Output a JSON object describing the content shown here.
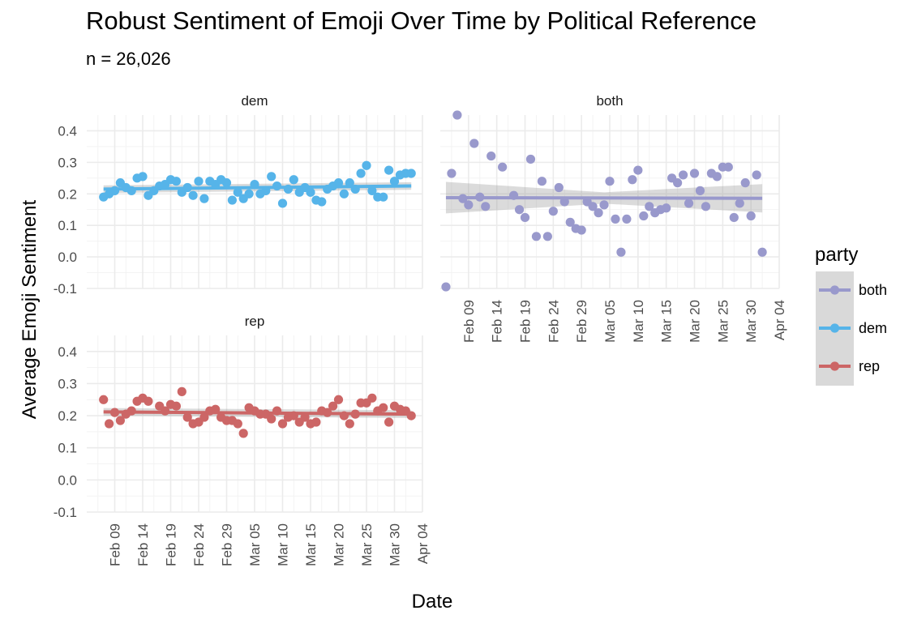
{
  "title": "Robust Sentiment of Emoji Over Time by Political Reference",
  "subtitle": "n = 26,026",
  "chart_data": {
    "type": "scatter",
    "xlabel": "Date",
    "ylabel": "Average Emoji Sentiment",
    "ylim": [
      -0.1,
      0.45
    ],
    "y_ticks": [
      "-0.1",
      "0.0",
      "0.1",
      "0.2",
      "0.3",
      "0.4"
    ],
    "y_tick_values": [
      -0.1,
      0.0,
      0.1,
      0.2,
      0.3,
      0.4
    ],
    "x_range": [
      "2020-02-04",
      "2020-04-04"
    ],
    "x_ticks": [
      "Feb 09",
      "Feb 14",
      "Feb 19",
      "Feb 24",
      "Feb 29",
      "Mar 05",
      "Mar 10",
      "Mar 15",
      "Mar 20",
      "Mar 25",
      "Mar 30",
      "Apr 04"
    ],
    "x_tick_dates": [
      "2020-02-09",
      "2020-02-14",
      "2020-02-19",
      "2020-02-24",
      "2020-02-29",
      "2020-03-05",
      "2020-03-10",
      "2020-03-15",
      "2020-03-20",
      "2020-03-25",
      "2020-03-30",
      "2020-04-04"
    ],
    "grid": true,
    "facet_by": "party",
    "legend": {
      "title": "party",
      "position": "right",
      "entries": [
        {
          "label": "both",
          "color": "#9999cc"
        },
        {
          "label": "dem",
          "color": "#56b4e9"
        },
        {
          "label": "rep",
          "color": "#cc6666"
        }
      ]
    },
    "panels": [
      {
        "strip": "dem",
        "color": "#56b4e9",
        "band": "narrow",
        "fit": [
          0.215,
          0.225
        ],
        "x": [
          "2020-02-07",
          "2020-02-08",
          "2020-02-09",
          "2020-02-10",
          "2020-02-11",
          "2020-02-12",
          "2020-02-13",
          "2020-02-14",
          "2020-02-15",
          "2020-02-16",
          "2020-02-17",
          "2020-02-18",
          "2020-02-19",
          "2020-02-20",
          "2020-02-21",
          "2020-02-22",
          "2020-02-23",
          "2020-02-24",
          "2020-02-25",
          "2020-02-26",
          "2020-02-27",
          "2020-02-28",
          "2020-02-29",
          "2020-03-01",
          "2020-03-02",
          "2020-03-03",
          "2020-03-04",
          "2020-03-05",
          "2020-03-06",
          "2020-03-07",
          "2020-03-08",
          "2020-03-09",
          "2020-03-10",
          "2020-03-11",
          "2020-03-12",
          "2020-03-13",
          "2020-03-14",
          "2020-03-15",
          "2020-03-16",
          "2020-03-17",
          "2020-03-18",
          "2020-03-19",
          "2020-03-20",
          "2020-03-21",
          "2020-03-22",
          "2020-03-23",
          "2020-03-24",
          "2020-03-25",
          "2020-03-26",
          "2020-03-27",
          "2020-03-28",
          "2020-03-29",
          "2020-03-30",
          "2020-03-31",
          "2020-04-01",
          "2020-04-02"
        ],
        "y": [
          0.19,
          0.2,
          0.21,
          0.235,
          0.22,
          0.21,
          0.25,
          0.255,
          0.195,
          0.21,
          0.225,
          0.23,
          0.245,
          0.24,
          0.205,
          0.22,
          0.195,
          0.24,
          0.185,
          0.24,
          0.23,
          0.245,
          0.235,
          0.18,
          0.205,
          0.185,
          0.2,
          0.23,
          0.2,
          0.21,
          0.255,
          0.225,
          0.17,
          0.215,
          0.245,
          0.205,
          0.22,
          0.205,
          0.18,
          0.175,
          0.215,
          0.225,
          0.235,
          0.2,
          0.235,
          0.215,
          0.265,
          0.29,
          0.21,
          0.19,
          0.19,
          0.275,
          0.24,
          0.26,
          0.265,
          0.265
        ]
      },
      {
        "strip": "both",
        "color": "#9999cc",
        "band": "wide",
        "fit": [
          0.188,
          0.186
        ],
        "x": [
          "2020-02-05",
          "2020-02-06",
          "2020-02-07",
          "2020-02-08",
          "2020-02-09",
          "2020-02-10",
          "2020-02-11",
          "2020-02-12",
          "2020-02-13",
          "2020-02-15",
          "2020-02-17",
          "2020-02-18",
          "2020-02-19",
          "2020-02-20",
          "2020-02-21",
          "2020-02-22",
          "2020-02-23",
          "2020-02-24",
          "2020-02-25",
          "2020-02-26",
          "2020-02-27",
          "2020-02-28",
          "2020-02-29",
          "2020-03-01",
          "2020-03-02",
          "2020-03-03",
          "2020-03-04",
          "2020-03-05",
          "2020-03-06",
          "2020-03-07",
          "2020-03-08",
          "2020-03-09",
          "2020-03-10",
          "2020-03-11",
          "2020-03-12",
          "2020-03-13",
          "2020-03-14",
          "2020-03-15",
          "2020-03-16",
          "2020-03-17",
          "2020-03-18",
          "2020-03-19",
          "2020-03-20",
          "2020-03-21",
          "2020-03-22",
          "2020-03-23",
          "2020-03-24",
          "2020-03-25",
          "2020-03-26",
          "2020-03-27",
          "2020-03-28",
          "2020-03-29",
          "2020-03-30",
          "2020-03-31",
          "2020-04-01"
        ],
        "y": [
          -0.095,
          0.265,
          0.45,
          0.185,
          0.165,
          0.36,
          0.19,
          0.16,
          0.32,
          0.285,
          0.195,
          0.15,
          0.125,
          0.31,
          0.065,
          0.24,
          0.065,
          0.145,
          0.22,
          0.175,
          0.11,
          0.09,
          0.085,
          0.175,
          0.16,
          0.14,
          0.165,
          0.24,
          0.12,
          0.015,
          0.12,
          0.245,
          0.275,
          0.13,
          0.16,
          0.14,
          0.15,
          0.155,
          0.25,
          0.235,
          0.26,
          0.17,
          0.265,
          0.21,
          0.16,
          0.265,
          0.255,
          0.285,
          0.285,
          0.125,
          0.17,
          0.235,
          0.13,
          0.26,
          0.015
        ]
      },
      {
        "strip": "rep",
        "color": "#cc6666",
        "band": "narrow",
        "fit": [
          0.212,
          0.205
        ],
        "x": [
          "2020-02-07",
          "2020-02-08",
          "2020-02-09",
          "2020-02-10",
          "2020-02-11",
          "2020-02-12",
          "2020-02-13",
          "2020-02-14",
          "2020-02-15",
          "2020-02-17",
          "2020-02-18",
          "2020-02-19",
          "2020-02-20",
          "2020-02-21",
          "2020-02-22",
          "2020-02-23",
          "2020-02-24",
          "2020-02-25",
          "2020-02-26",
          "2020-02-27",
          "2020-02-28",
          "2020-02-29",
          "2020-03-01",
          "2020-03-02",
          "2020-03-03",
          "2020-03-04",
          "2020-03-05",
          "2020-03-06",
          "2020-03-07",
          "2020-03-08",
          "2020-03-09",
          "2020-03-10",
          "2020-03-11",
          "2020-03-12",
          "2020-03-13",
          "2020-03-14",
          "2020-03-15",
          "2020-03-16",
          "2020-03-17",
          "2020-03-18",
          "2020-03-19",
          "2020-03-20",
          "2020-03-21",
          "2020-03-22",
          "2020-03-23",
          "2020-03-24",
          "2020-03-25",
          "2020-03-26",
          "2020-03-27",
          "2020-03-28",
          "2020-03-29",
          "2020-03-30",
          "2020-03-31",
          "2020-04-01",
          "2020-04-02"
        ],
        "y": [
          0.25,
          0.175,
          0.21,
          0.185,
          0.205,
          0.215,
          0.245,
          0.255,
          0.245,
          0.23,
          0.215,
          0.235,
          0.23,
          0.275,
          0.195,
          0.175,
          0.18,
          0.195,
          0.215,
          0.22,
          0.195,
          0.185,
          0.185,
          0.175,
          0.145,
          0.225,
          0.215,
          0.205,
          0.205,
          0.19,
          0.215,
          0.175,
          0.195,
          0.2,
          0.18,
          0.195,
          0.175,
          0.18,
          0.215,
          0.21,
          0.23,
          0.25,
          0.2,
          0.175,
          0.205,
          0.24,
          0.24,
          0.255,
          0.215,
          0.225,
          0.18,
          0.23,
          0.22,
          0.215,
          0.2
        ]
      }
    ]
  }
}
